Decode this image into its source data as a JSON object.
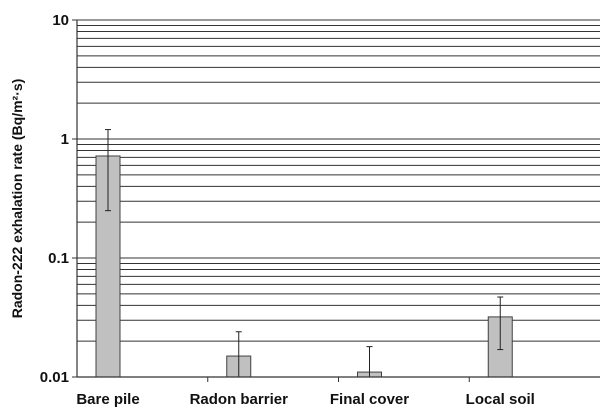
{
  "chart_data": {
    "type": "bar",
    "title": "",
    "xlabel": "",
    "ylabel": "Radon-222 exhalation rate (Bq/m²·s)",
    "yscale": "log",
    "ylim": [
      0.01,
      10
    ],
    "yticks": [
      {
        "value": 0.01,
        "label": "0.01"
      },
      {
        "value": 0.1,
        "label": "0.1"
      },
      {
        "value": 1,
        "label": "1"
      },
      {
        "value": 10,
        "label": "10"
      }
    ],
    "grid": true,
    "categories": [
      "Bare pile",
      "Radon barrier",
      "Final cover",
      "Local soil"
    ],
    "values": [
      0.72,
      0.015,
      0.011,
      0.032
    ],
    "error_low": [
      0.25,
      0.009,
      0.0,
      0.017
    ],
    "error_high": [
      1.2,
      0.024,
      0.018,
      0.047
    ],
    "bar_color": "#c0c0c0",
    "bar_stroke": "#404040",
    "grid_color": "#333333"
  }
}
